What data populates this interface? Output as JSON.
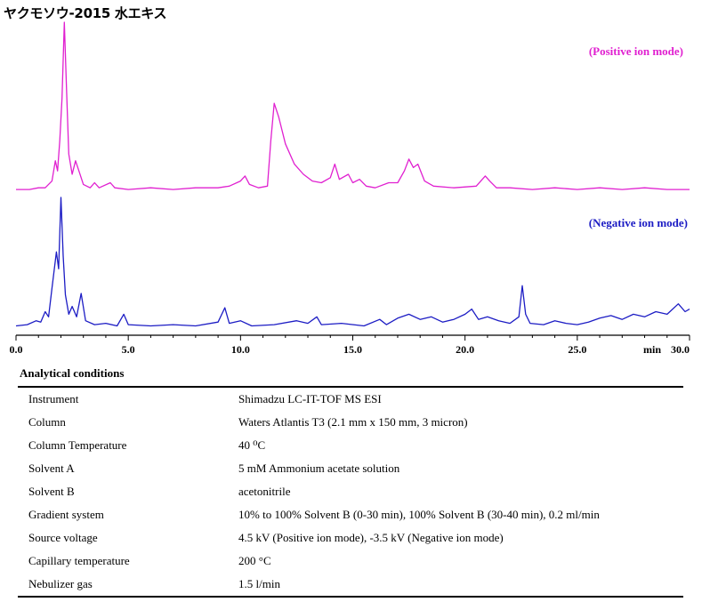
{
  "title": "ヤクモソウ-2015 水エキス",
  "chart_data": {
    "type": "line",
    "x_unit": "min",
    "xlim": [
      0,
      30
    ],
    "x_ticks": [
      "0.0",
      "5.0",
      "10.0",
      "15.0",
      "20.0",
      "25.0",
      "30.0"
    ],
    "series": [
      {
        "name": "(Positive ion mode)",
        "color": "#e020d0",
        "points": [
          [
            0.0,
            0.01
          ],
          [
            0.6,
            0.01
          ],
          [
            1.0,
            0.02
          ],
          [
            1.3,
            0.02
          ],
          [
            1.6,
            0.06
          ],
          [
            1.75,
            0.18
          ],
          [
            1.85,
            0.12
          ],
          [
            1.95,
            0.3
          ],
          [
            2.05,
            0.55
          ],
          [
            2.15,
            1.0
          ],
          [
            2.25,
            0.6
          ],
          [
            2.35,
            0.22
          ],
          [
            2.5,
            0.1
          ],
          [
            2.65,
            0.18
          ],
          [
            2.8,
            0.12
          ],
          [
            3.0,
            0.04
          ],
          [
            3.3,
            0.02
          ],
          [
            3.5,
            0.05
          ],
          [
            3.7,
            0.02
          ],
          [
            4.2,
            0.05
          ],
          [
            4.4,
            0.02
          ],
          [
            5.0,
            0.01
          ],
          [
            6.0,
            0.02
          ],
          [
            7.0,
            0.01
          ],
          [
            8.0,
            0.02
          ],
          [
            9.0,
            0.02
          ],
          [
            9.5,
            0.03
          ],
          [
            10.0,
            0.06
          ],
          [
            10.2,
            0.09
          ],
          [
            10.4,
            0.04
          ],
          [
            10.8,
            0.02
          ],
          [
            11.2,
            0.03
          ],
          [
            11.35,
            0.3
          ],
          [
            11.5,
            0.52
          ],
          [
            11.7,
            0.44
          ],
          [
            12.0,
            0.28
          ],
          [
            12.4,
            0.16
          ],
          [
            12.8,
            0.1
          ],
          [
            13.2,
            0.06
          ],
          [
            13.6,
            0.05
          ],
          [
            14.0,
            0.08
          ],
          [
            14.2,
            0.16
          ],
          [
            14.4,
            0.07
          ],
          [
            14.8,
            0.1
          ],
          [
            15.0,
            0.05
          ],
          [
            15.3,
            0.07
          ],
          [
            15.6,
            0.03
          ],
          [
            16.0,
            0.02
          ],
          [
            16.6,
            0.05
          ],
          [
            17.0,
            0.05
          ],
          [
            17.3,
            0.12
          ],
          [
            17.5,
            0.19
          ],
          [
            17.7,
            0.14
          ],
          [
            17.9,
            0.16
          ],
          [
            18.2,
            0.06
          ],
          [
            18.6,
            0.03
          ],
          [
            19.5,
            0.02
          ],
          [
            20.5,
            0.03
          ],
          [
            20.9,
            0.09
          ],
          [
            21.1,
            0.06
          ],
          [
            21.4,
            0.02
          ],
          [
            22.0,
            0.02
          ],
          [
            23.0,
            0.01
          ],
          [
            24.0,
            0.02
          ],
          [
            25.0,
            0.01
          ],
          [
            26.0,
            0.02
          ],
          [
            27.0,
            0.01
          ],
          [
            28.0,
            0.02
          ],
          [
            29.0,
            0.01
          ],
          [
            30.0,
            0.01
          ]
        ]
      },
      {
        "name": "(Negative ion mode)",
        "color": "#1c1cc4",
        "points": [
          [
            0.0,
            0.01
          ],
          [
            0.5,
            0.02
          ],
          [
            0.9,
            0.05
          ],
          [
            1.1,
            0.04
          ],
          [
            1.3,
            0.12
          ],
          [
            1.45,
            0.08
          ],
          [
            1.6,
            0.3
          ],
          [
            1.8,
            0.58
          ],
          [
            1.9,
            0.45
          ],
          [
            2.0,
            1.0
          ],
          [
            2.1,
            0.55
          ],
          [
            2.2,
            0.25
          ],
          [
            2.35,
            0.1
          ],
          [
            2.5,
            0.16
          ],
          [
            2.7,
            0.08
          ],
          [
            2.9,
            0.26
          ],
          [
            3.1,
            0.05
          ],
          [
            3.5,
            0.02
          ],
          [
            4.0,
            0.03
          ],
          [
            4.5,
            0.01
          ],
          [
            4.8,
            0.1
          ],
          [
            5.0,
            0.02
          ],
          [
            6.0,
            0.01
          ],
          [
            7.0,
            0.02
          ],
          [
            8.0,
            0.01
          ],
          [
            9.0,
            0.04
          ],
          [
            9.3,
            0.15
          ],
          [
            9.5,
            0.03
          ],
          [
            10.0,
            0.05
          ],
          [
            10.5,
            0.01
          ],
          [
            11.5,
            0.02
          ],
          [
            12.5,
            0.05
          ],
          [
            13.0,
            0.03
          ],
          [
            13.4,
            0.08
          ],
          [
            13.6,
            0.02
          ],
          [
            14.5,
            0.03
          ],
          [
            15.5,
            0.01
          ],
          [
            16.2,
            0.06
          ],
          [
            16.5,
            0.02
          ],
          [
            17.0,
            0.07
          ],
          [
            17.5,
            0.1
          ],
          [
            18.0,
            0.06
          ],
          [
            18.5,
            0.08
          ],
          [
            19.0,
            0.04
          ],
          [
            19.5,
            0.06
          ],
          [
            20.0,
            0.1
          ],
          [
            20.3,
            0.14
          ],
          [
            20.6,
            0.06
          ],
          [
            21.0,
            0.08
          ],
          [
            21.5,
            0.05
          ],
          [
            22.0,
            0.03
          ],
          [
            22.4,
            0.08
          ],
          [
            22.55,
            0.32
          ],
          [
            22.7,
            0.1
          ],
          [
            22.9,
            0.03
          ],
          [
            23.5,
            0.02
          ],
          [
            24.0,
            0.05
          ],
          [
            24.5,
            0.03
          ],
          [
            25.0,
            0.02
          ],
          [
            25.5,
            0.04
          ],
          [
            26.0,
            0.07
          ],
          [
            26.5,
            0.09
          ],
          [
            27.0,
            0.06
          ],
          [
            27.5,
            0.1
          ],
          [
            28.0,
            0.08
          ],
          [
            28.5,
            0.12
          ],
          [
            29.0,
            0.1
          ],
          [
            29.5,
            0.18
          ],
          [
            29.8,
            0.12
          ],
          [
            30.0,
            0.14
          ]
        ]
      }
    ]
  },
  "conditions": {
    "title": "Analytical conditions",
    "rows": [
      {
        "key": "Instrument",
        "value": "Shimadzu LC-IT-TOF MS ESI"
      },
      {
        "key": "Column",
        "value": "Waters Atlantis T3 (2.1 mm x 150 mm, 3 micron)"
      },
      {
        "key": "Column Temperature",
        "value": "40 ⁰C"
      },
      {
        "key": "Solvent A",
        "value": "5 mM Ammonium acetate solution"
      },
      {
        "key": "Solvent B",
        "value": "acetonitrile"
      },
      {
        "key": "Gradient system",
        "value": "10% to 100% Solvent B (0-30 min), 100% Solvent B (30-40 min), 0.2 ml/min"
      },
      {
        "key": "Source voltage",
        "value": "4.5 kV (Positive ion mode), -3.5 kV (Negative ion mode)"
      },
      {
        "key": "Capillary temperature",
        "value": "200 °C"
      },
      {
        "key": "Nebulizer gas",
        "value": "1.5 l/min"
      }
    ]
  }
}
